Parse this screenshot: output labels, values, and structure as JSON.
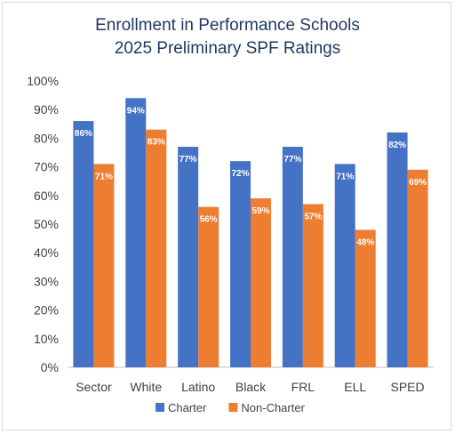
{
  "chart_data": {
    "type": "bar",
    "title": "Enrollment in Performance Schools",
    "subtitle": "2025 Preliminary SPF Ratings",
    "categories": [
      "Sector",
      "White",
      "Latino",
      "Black",
      "FRL",
      "ELL",
      "SPED"
    ],
    "series": [
      {
        "name": "Charter",
        "color": "#4472c4",
        "values": [
          86,
          94,
          77,
          72,
          77,
          71,
          82
        ],
        "labels": [
          "86%",
          "94%",
          "77%",
          "72%",
          "77%",
          "71%",
          "82%"
        ]
      },
      {
        "name": "Non-Charter",
        "color": "#ed7d31",
        "values": [
          71,
          83,
          56,
          59,
          57,
          48,
          69
        ],
        "labels": [
          "71%",
          "83%",
          "56%",
          "59%",
          "57%",
          "48%",
          "69%"
        ]
      }
    ],
    "yticks": [
      "0%",
      "10%",
      "20%",
      "30%",
      "40%",
      "50%",
      "60%",
      "70%",
      "80%",
      "90%",
      "100%"
    ],
    "ylim": [
      0,
      100
    ],
    "grid": false,
    "legend": "bottom"
  }
}
